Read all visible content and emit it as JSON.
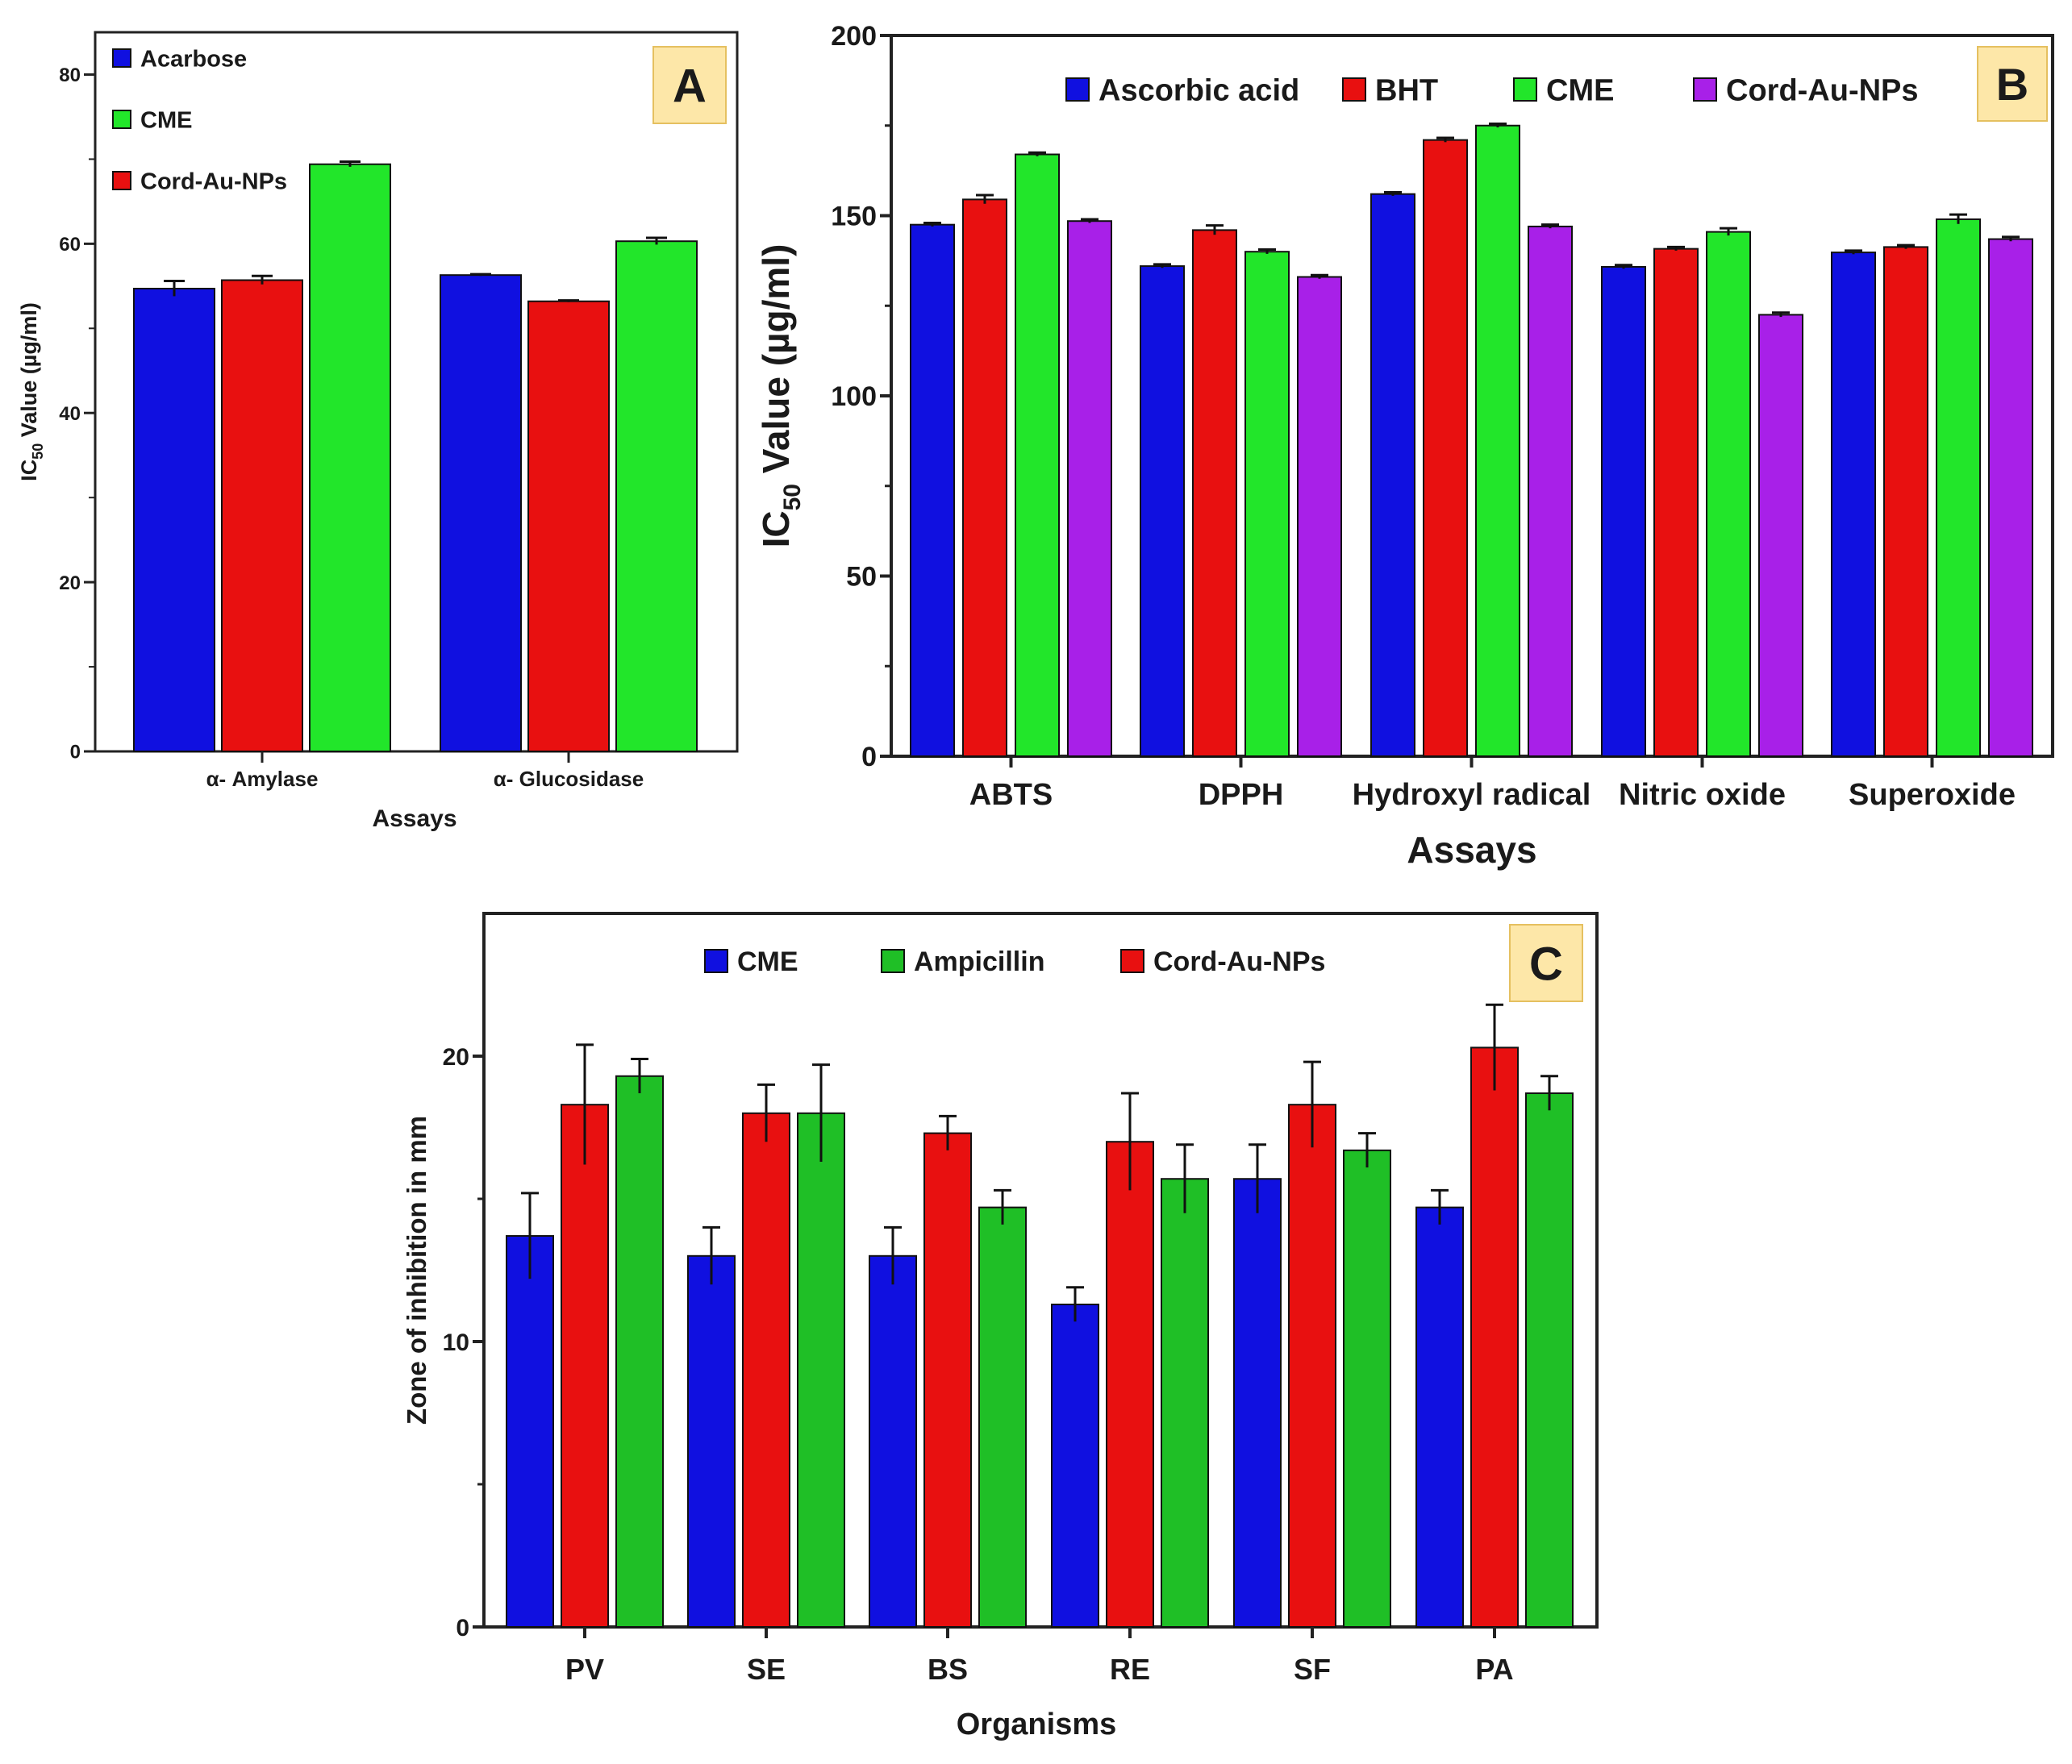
{
  "chart_data": [
    {
      "panel": "A",
      "type": "bar",
      "ylabel_main": "IC",
      "ylabel_sub": "50",
      "ylabel_rest": " Value (µg/ml)",
      "xlabel": "Assays",
      "ylim": [
        0,
        85
      ],
      "yticks": [
        0,
        20,
        40,
        60,
        80
      ],
      "legend_position": "top-left",
      "categories": [
        "α- Amylase",
        "α- Glucosidase"
      ],
      "series": [
        {
          "name": "Acarbose",
          "color": "#1010e0",
          "values": [
            54.7,
            56.3
          ],
          "errors": [
            0.9,
            0.1
          ]
        },
        {
          "name": "Cord-Au-NPs",
          "color": "#e81010",
          "values": [
            55.7,
            53.2
          ],
          "errors": [
            0.5,
            0.1
          ]
        },
        {
          "name": "CME",
          "color": "#22e62a",
          "values": [
            69.4,
            60.3
          ],
          "errors": [
            0.3,
            0.4
          ]
        }
      ],
      "legend_order": [
        "Acarbose",
        "CME",
        "Cord-Au-NPs"
      ]
    },
    {
      "panel": "B",
      "type": "bar",
      "ylabel_main": "IC",
      "ylabel_sub": "50",
      "ylabel_rest": " Value (µg/ml)",
      "xlabel": "Assays",
      "ylim": [
        0,
        200
      ],
      "yticks": [
        0,
        50,
        100,
        150,
        200
      ],
      "legend_position": "top",
      "categories": [
        "ABTS",
        "DPPH",
        "Hydroxyl radical",
        "Nitric oxide",
        "Superoxide"
      ],
      "series": [
        {
          "name": "Ascorbic acid",
          "color": "#1010e0",
          "values": [
            147.5,
            136,
            156,
            135.8,
            139.8
          ],
          "errors": [
            0.5,
            0.5,
            0.5,
            0.5,
            0.5
          ]
        },
        {
          "name": "BHT",
          "color": "#e81010",
          "values": [
            154.5,
            146,
            171,
            140.8,
            141.3
          ],
          "errors": [
            1.2,
            1.3,
            0.6,
            0.5,
            0.5
          ]
        },
        {
          "name": "CME",
          "color": "#22e62a",
          "values": [
            167,
            140,
            175,
            145.5,
            149
          ],
          "errors": [
            0.5,
            0.6,
            0.5,
            1.0,
            1.3
          ]
        },
        {
          "name": "Cord-Au-NPs",
          "color": "#a820e8",
          "values": [
            148.5,
            133,
            147,
            122.5,
            143.5
          ],
          "errors": [
            0.5,
            0.5,
            0.5,
            0.6,
            0.6
          ]
        }
      ],
      "legend_order": [
        "Ascorbic acid",
        "BHT",
        "CME",
        "Cord-Au-NPs"
      ]
    },
    {
      "panel": "C",
      "type": "bar",
      "ylabel": "Zone of inhibition in mm",
      "xlabel": "Organisms",
      "ylim": [
        0,
        25
      ],
      "yticks": [
        0,
        10,
        20
      ],
      "legend_position": "top",
      "categories": [
        "PV",
        "SE",
        "BS",
        "RE",
        "SF",
        "PA"
      ],
      "series": [
        {
          "name": "CME",
          "color": "#1010e0",
          "values": [
            13.7,
            13,
            13,
            11.3,
            15.7,
            14.7
          ],
          "errors": [
            1.5,
            1.0,
            1.0,
            0.6,
            1.2,
            0.6
          ]
        },
        {
          "name": "Cord-Au-NPs",
          "color": "#e81010",
          "values": [
            18.3,
            18,
            17.3,
            17,
            18.3,
            20.3
          ],
          "errors": [
            2.1,
            1.0,
            0.6,
            1.7,
            1.5,
            1.5
          ]
        },
        {
          "name": "Ampicillin",
          "color": "#1fbf26",
          "values": [
            19.3,
            18,
            14.7,
            15.7,
            16.7,
            18.7
          ],
          "errors": [
            0.6,
            1.7,
            0.6,
            1.2,
            0.6,
            0.6
          ]
        }
      ],
      "legend_order": [
        "CME",
        "Ampicillin",
        "Cord-Au-NPs"
      ]
    }
  ]
}
